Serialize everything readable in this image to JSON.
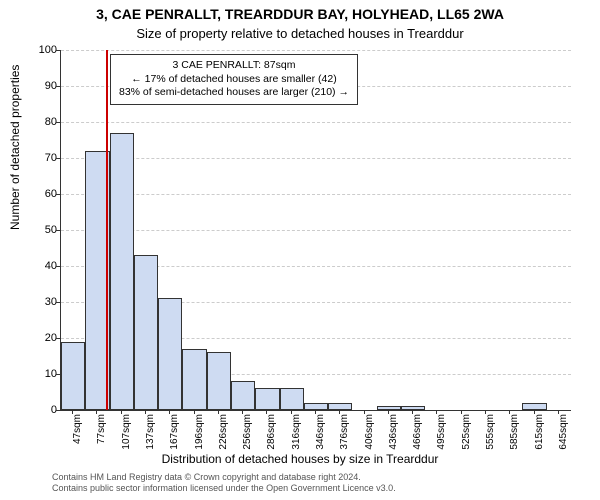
{
  "title": "3, CAE PENRALLT, TREARDDUR BAY, HOLYHEAD, LL65 2WA",
  "subtitle": "Size of property relative to detached houses in Trearddur",
  "ylabel": "Number of detached properties",
  "xlabel": "Distribution of detached houses by size in Trearddur",
  "ylim": [
    0,
    100
  ],
  "ytick_step": 10,
  "bar_fill": "#cedbf2",
  "bar_border": "#333333",
  "grid_color": "#cccccc",
  "refline_color": "#cc0000",
  "refline_x": 87,
  "categories": [
    "47sqm",
    "77sqm",
    "107sqm",
    "137sqm",
    "167sqm",
    "196sqm",
    "226sqm",
    "256sqm",
    "286sqm",
    "316sqm",
    "346sqm",
    "376sqm",
    "406sqm",
    "436sqm",
    "466sqm",
    "495sqm",
    "525sqm",
    "555sqm",
    "585sqm",
    "615sqm",
    "645sqm"
  ],
  "values": [
    19,
    72,
    77,
    43,
    31,
    17,
    16,
    8,
    6,
    6,
    2,
    2,
    0,
    1,
    1,
    0,
    0,
    0,
    0,
    2,
    0
  ],
  "annotation": {
    "line1": "3 CAE PENRALLT: 87sqm",
    "line2": "← 17% of detached houses are smaller (42)",
    "line3": "83% of semi-detached houses are larger (210) →"
  },
  "footer1": "Contains HM Land Registry data © Crown copyright and database right 2024.",
  "footer2": "Contains public sector information licensed under the Open Government Licence v3.0."
}
